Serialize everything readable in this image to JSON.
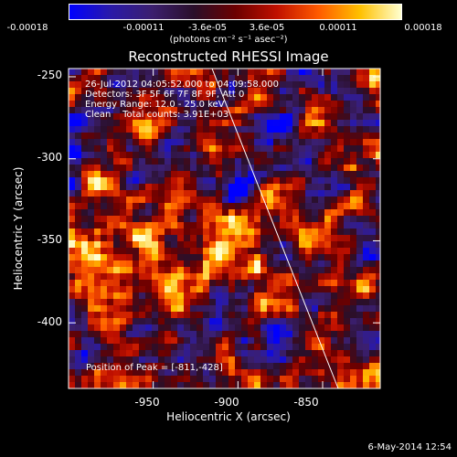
{
  "colorbar": {
    "tick_labels": [
      "-0.00018",
      "-0.00011",
      "-3.6e-05",
      "3.6e-05",
      "0.00011",
      "0.00018"
    ],
    "units": "(photons cm⁻² s⁻¹ asec⁻²)",
    "colors": [
      "#0000ff",
      "#2a1aa8",
      "#3b1f6e",
      "#2a0f2a",
      "#6b0000",
      "#c01000",
      "#ff5a00",
      "#ffc000",
      "#ffffd0"
    ]
  },
  "title": "Reconstructed RHESSI Image",
  "annotations": [
    "26-Jul-2012 04:05:52.000 to 04:09:58.000",
    "Detectors: 3F 5F 6F 7F 8F 9F, Att 0",
    "Energy Range: 12.0 - 25.0 keV",
    "Clean    Total counts: 3.91E+03"
  ],
  "peak_label": "Position of Peak = [-811,-428]",
  "axes": {
    "xlabel": "Heliocentric X (arcsec)",
    "ylabel": "Heliocentric Y (arcsec)",
    "xticks": [
      "-950",
      "-900",
      "-850"
    ],
    "yticks": [
      "-250",
      "-300",
      "-350",
      "-400"
    ],
    "x_tick_values": [
      -950,
      -900,
      -850
    ],
    "y_tick_values": [
      -250,
      -300,
      -350,
      -400
    ],
    "xlim": [
      -1000,
      -816
    ],
    "ylim": [
      -440,
      -245
    ]
  },
  "footer_date": "6-May-2014 12:54"
}
